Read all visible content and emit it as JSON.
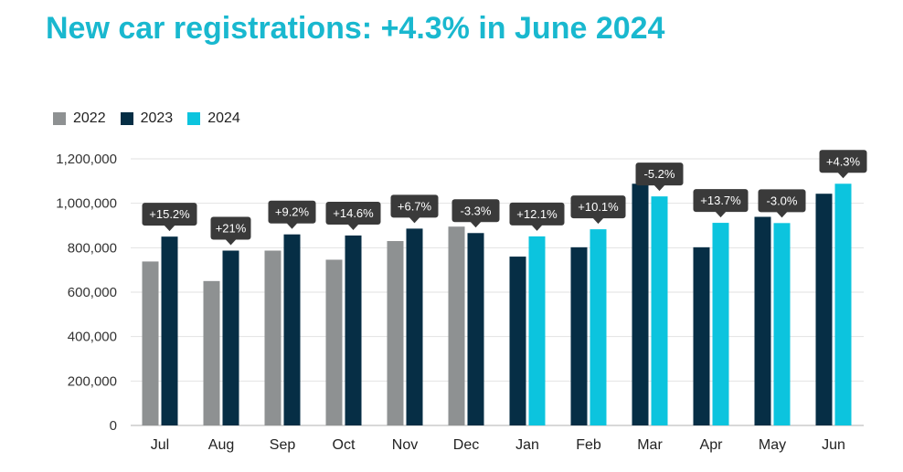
{
  "title": "New car registrations: +4.3% in June 2024",
  "colors": {
    "title": "#19b8cf",
    "2022": "#8e9192",
    "2023": "#062e45",
    "2024": "#0cc4de",
    "label_bg": "#3a3a3a",
    "label_text": "#ffffff",
    "grid": "#e2e2e2"
  },
  "legend": [
    {
      "label": "2022",
      "color": "#8e9192"
    },
    {
      "label": "2023",
      "color": "#062e45"
    },
    {
      "label": "2024",
      "color": "#0cc4de"
    }
  ],
  "chart_data": {
    "type": "bar",
    "title": "New car registrations: +4.3% in June 2024",
    "xlabel": "",
    "ylabel": "",
    "ylim": [
      0,
      1200000
    ],
    "yticks": [
      0,
      200000,
      400000,
      600000,
      800000,
      1000000,
      1200000
    ],
    "ytick_labels": [
      "0",
      "200,000",
      "400,000",
      "600,000",
      "800,000",
      "1,000,000",
      "1,200,000"
    ],
    "grid": true,
    "legend_position": "top-left",
    "categories": [
      "Jul",
      "Aug",
      "Sep",
      "Oct",
      "Nov",
      "Dec",
      "Jan",
      "Feb",
      "Mar",
      "Apr",
      "May",
      "Jun"
    ],
    "groups": [
      {
        "category": "Jul",
        "bars": [
          {
            "series": "2022",
            "value": 738000
          },
          {
            "series": "2023",
            "value": 850000
          }
        ],
        "change_label": "+15.2%"
      },
      {
        "category": "Aug",
        "bars": [
          {
            "series": "2022",
            "value": 650000
          },
          {
            "series": "2023",
            "value": 787000
          }
        ],
        "change_label": "+21%"
      },
      {
        "category": "Sep",
        "bars": [
          {
            "series": "2022",
            "value": 787000
          },
          {
            "series": "2023",
            "value": 860000
          }
        ],
        "change_label": "+9.2%"
      },
      {
        "category": "Oct",
        "bars": [
          {
            "series": "2022",
            "value": 746000
          },
          {
            "series": "2023",
            "value": 855000
          }
        ],
        "change_label": "+14.6%"
      },
      {
        "category": "Nov",
        "bars": [
          {
            "series": "2022",
            "value": 830000
          },
          {
            "series": "2023",
            "value": 886000
          }
        ],
        "change_label": "+6.7%"
      },
      {
        "category": "Dec",
        "bars": [
          {
            "series": "2022",
            "value": 895000
          },
          {
            "series": "2023",
            "value": 866000
          }
        ],
        "change_label": "-3.3%"
      },
      {
        "category": "Jan",
        "bars": [
          {
            "series": "2023",
            "value": 760000
          },
          {
            "series": "2024",
            "value": 851000
          }
        ],
        "change_label": "+12.1%"
      },
      {
        "category": "Feb",
        "bars": [
          {
            "series": "2023",
            "value": 802000
          },
          {
            "series": "2024",
            "value": 883000
          }
        ],
        "change_label": "+10.1%"
      },
      {
        "category": "Mar",
        "bars": [
          {
            "series": "2023",
            "value": 1088000
          },
          {
            "series": "2024",
            "value": 1031000
          }
        ],
        "change_label": "-5.2%"
      },
      {
        "category": "Apr",
        "bars": [
          {
            "series": "2023",
            "value": 802000
          },
          {
            "series": "2024",
            "value": 912000
          }
        ],
        "change_label": "+13.7%"
      },
      {
        "category": "May",
        "bars": [
          {
            "series": "2023",
            "value": 939000
          },
          {
            "series": "2024",
            "value": 911000
          }
        ],
        "change_label": "-3.0%"
      },
      {
        "category": "Jun",
        "bars": [
          {
            "series": "2023",
            "value": 1043000
          },
          {
            "series": "2024",
            "value": 1088000
          }
        ],
        "change_label": "+4.3%"
      }
    ]
  }
}
